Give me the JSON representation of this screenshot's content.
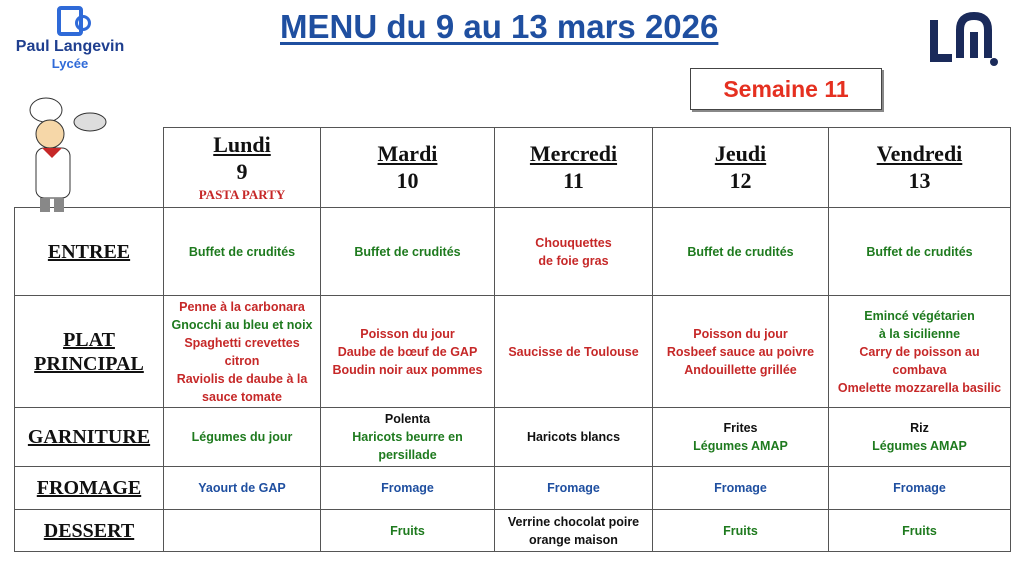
{
  "school": {
    "name": "Paul Langevin",
    "type": "Lycée"
  },
  "title": "MENU du 9 au 13 mars 2026",
  "week": "Semaine 11",
  "colors": {
    "title": "#1f4fa0",
    "week": "#e53020",
    "red": "#c62828",
    "green": "#1e7a1e",
    "blue": "#1f4fa0"
  },
  "days": [
    {
      "name": "Lundi",
      "num": "9",
      "event": "PASTA PARTY"
    },
    {
      "name": "Mardi",
      "num": "10",
      "event": ""
    },
    {
      "name": "Mercredi",
      "num": "11",
      "event": ""
    },
    {
      "name": "Jeudi",
      "num": "12",
      "event": ""
    },
    {
      "name": "Vendredi",
      "num": "13",
      "event": ""
    }
  ],
  "rows": [
    {
      "label": [
        "ENTREE"
      ],
      "cells": [
        [
          {
            "t": "Buffet de crudités",
            "c": "green"
          }
        ],
        [
          {
            "t": "Buffet de crudités",
            "c": "green"
          }
        ],
        [
          {
            "t": "Chouquettes",
            "c": "red"
          },
          {
            "t": "de foie gras",
            "c": "red"
          }
        ],
        [
          {
            "t": "Buffet de crudités",
            "c": "green"
          }
        ],
        [
          {
            "t": "Buffet de crudités",
            "c": "green"
          }
        ]
      ]
    },
    {
      "label": [
        "PLAT",
        "PRINCIPAL"
      ],
      "cells": [
        [
          {
            "t": "Penne à la carbonara",
            "c": "red"
          },
          {
            "t": "Gnocchi au bleu et noix",
            "c": "green"
          },
          {
            "t": "Spaghetti crevettes",
            "c": "red"
          },
          {
            "t": "citron",
            "c": "red"
          },
          {
            "t": "Raviolis de daube à la",
            "c": "red"
          },
          {
            "t": "sauce tomate",
            "c": "red"
          }
        ],
        [
          {
            "t": "Poisson du jour",
            "c": "red"
          },
          {
            "t": "Daube de bœuf de GAP",
            "c": "red"
          },
          {
            "t": "Boudin noir aux pommes",
            "c": "red"
          }
        ],
        [
          {
            "t": "Saucisse de Toulouse",
            "c": "red"
          }
        ],
        [
          {
            "t": "Poisson du jour",
            "c": "red"
          },
          {
            "t": "Rosbeef sauce au poivre",
            "c": "red"
          },
          {
            "t": "Andouillette grillée",
            "c": "red"
          }
        ],
        [
          {
            "t": "Emincé végétarien",
            "c": "green"
          },
          {
            "t": "à la sicilienne",
            "c": "green"
          },
          {
            "t": "Carry de poisson au",
            "c": "red"
          },
          {
            "t": "combava",
            "c": "red"
          },
          {
            "t": "Omelette mozzarella basilic",
            "c": "red"
          }
        ]
      ]
    },
    {
      "label": [
        "GARNITURE"
      ],
      "cells": [
        [
          {
            "t": "Légumes du jour",
            "c": "green"
          }
        ],
        [
          {
            "t": "Polenta",
            "c": "black"
          },
          {
            "t": "Haricots beurre en",
            "c": "green"
          },
          {
            "t": "persillade",
            "c": "green"
          }
        ],
        [
          {
            "t": "Haricots blancs",
            "c": "black"
          }
        ],
        [
          {
            "t": "Frites",
            "c": "black"
          },
          {
            "t": "Légumes AMAP",
            "c": "green"
          }
        ],
        [
          {
            "t": "Riz",
            "c": "black"
          },
          {
            "t": "Légumes AMAP",
            "c": "green"
          }
        ]
      ]
    },
    {
      "label": [
        "FROMAGE"
      ],
      "cells": [
        [
          {
            "t": "Yaourt de GAP",
            "c": "blue"
          }
        ],
        [
          {
            "t": "Fromage",
            "c": "blue"
          }
        ],
        [
          {
            "t": "Fromage",
            "c": "blue"
          }
        ],
        [
          {
            "t": "Fromage",
            "c": "blue"
          }
        ],
        [
          {
            "t": "Fromage",
            "c": "blue"
          }
        ]
      ]
    },
    {
      "label": [
        "DESSERT"
      ],
      "cells": [
        [],
        [
          {
            "t": "Fruits",
            "c": "green"
          }
        ],
        [
          {
            "t": "Verrine chocolat poire",
            "c": "black"
          },
          {
            "t": "orange maison",
            "c": "black"
          }
        ],
        [
          {
            "t": "Fruits",
            "c": "green"
          }
        ],
        [
          {
            "t": "Fruits",
            "c": "green"
          }
        ]
      ]
    }
  ]
}
